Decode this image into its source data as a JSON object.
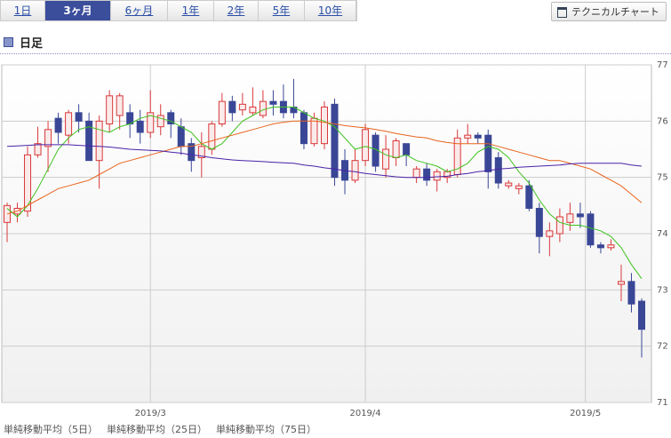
{
  "tabs": [
    "1日",
    "3ヶ月",
    "6ヶ月",
    "1年",
    "2年",
    "5年",
    "10年"
  ],
  "selected_tab": 1,
  "button": "テクニカルチャート",
  "section": "日足",
  "chart_data": {
    "type": "candlestick",
    "categories": [
      null,
      null,
      null,
      null,
      null,
      null,
      null,
      null,
      null,
      null,
      null,
      null,
      null,
      null,
      null,
      null,
      null,
      null,
      null,
      null,
      null,
      null,
      null,
      null,
      null,
      null,
      null,
      null,
      null,
      null,
      null,
      null,
      null,
      null,
      null,
      null,
      null,
      null,
      null,
      null,
      null,
      null,
      null,
      null,
      null,
      null,
      null,
      null,
      null,
      null,
      null,
      null,
      null,
      null,
      null,
      null,
      null,
      null,
      null,
      null,
      null,
      null,
      null
    ],
    "open": [
      74.2,
      74.35,
      74.4,
      75.4,
      75.55,
      76.05,
      75.75,
      76.15,
      76.0,
      75.3,
      75.95,
      76.1,
      76.15,
      76.0,
      75.8,
      75.9,
      76.15,
      75.9,
      75.6,
      75.35,
      75.5,
      75.95,
      76.35,
      76.2,
      76.15,
      76.1,
      76.35,
      76.35,
      76.25,
      76.15,
      75.6,
      75.6,
      76.3,
      75.3,
      74.95,
      75.3,
      75.75,
      75.15,
      75.35,
      75.6,
      75.0,
      75.15,
      74.95,
      75.0,
      75.05,
      75.7,
      75.75,
      75.75,
      75.35,
      74.85,
      74.8,
      74.85,
      74.45,
      73.95,
      74.0,
      74.2,
      74.35,
      74.35,
      73.8,
      73.75,
      73.1,
      73.15,
      72.8
    ],
    "high": [
      74.55,
      74.55,
      75.55,
      75.9,
      76.0,
      76.15,
      76.2,
      76.3,
      76.15,
      76.1,
      76.55,
      76.5,
      76.3,
      76.2,
      76.55,
      76.3,
      76.2,
      76.05,
      75.7,
      75.8,
      76.0,
      76.5,
      76.45,
      76.5,
      76.6,
      76.55,
      76.55,
      76.65,
      76.75,
      76.2,
      76.15,
      76.35,
      76.4,
      75.5,
      75.5,
      75.95,
      75.8,
      75.75,
      75.7,
      75.6,
      75.2,
      75.25,
      75.15,
      75.15,
      75.85,
      75.95,
      75.8,
      75.85,
      75.45,
      74.95,
      74.9,
      74.95,
      74.55,
      74.2,
      74.45,
      74.55,
      74.55,
      74.4,
      73.85,
      73.9,
      73.45,
      73.3,
      72.85
    ],
    "low": [
      73.85,
      74.2,
      74.3,
      75.35,
      75.1,
      75.6,
      75.6,
      75.8,
      75.3,
      74.8,
      75.8,
      75.85,
      75.7,
      75.6,
      75.7,
      75.75,
      75.7,
      75.4,
      75.1,
      75.0,
      75.4,
      75.9,
      76.0,
      76.1,
      76.1,
      76.05,
      76.1,
      76.05,
      76.05,
      75.5,
      75.55,
      75.5,
      74.85,
      74.7,
      74.9,
      75.2,
      75.1,
      75.0,
      75.2,
      75.2,
      74.9,
      74.85,
      74.75,
      74.9,
      75.0,
      75.6,
      75.6,
      74.8,
      74.8,
      74.8,
      74.7,
      74.4,
      73.65,
      73.6,
      73.85,
      74.05,
      74.1,
      73.75,
      73.65,
      73.7,
      72.8,
      72.6,
      71.8
    ],
    "close": [
      74.5,
      74.45,
      75.4,
      75.6,
      75.85,
      75.8,
      76.15,
      76.0,
      75.3,
      76.0,
      76.45,
      76.45,
      75.95,
      75.8,
      76.15,
      76.1,
      75.95,
      75.55,
      75.3,
      75.55,
      75.95,
      76.35,
      76.15,
      76.3,
      76.25,
      76.35,
      76.3,
      76.15,
      76.15,
      75.6,
      76.05,
      76.25,
      75.0,
      74.95,
      75.3,
      75.85,
      75.2,
      75.5,
      75.65,
      75.4,
      75.15,
      74.95,
      75.1,
      75.1,
      75.7,
      75.75,
      75.7,
      75.1,
      74.9,
      74.9,
      74.85,
      74.45,
      73.95,
      74.05,
      74.3,
      74.35,
      74.3,
      73.8,
      73.75,
      73.8,
      73.15,
      72.75,
      72.3
    ],
    "up_color": "#d9383a",
    "down_color": "#3a4796",
    "series": [
      {
        "name": "単純移動平均（5日）",
        "color": "#3ec21e",
        "values": [
          74.45,
          74.3,
          74.5,
          74.8,
          75.15,
          75.5,
          75.7,
          75.85,
          75.9,
          75.85,
          75.8,
          75.9,
          75.95,
          76.05,
          76.1,
          76.05,
          76.0,
          75.9,
          75.8,
          75.6,
          75.5,
          75.6,
          75.8,
          76.0,
          76.1,
          76.2,
          76.25,
          76.25,
          76.25,
          76.15,
          76.05,
          76.0,
          75.9,
          75.7,
          75.5,
          75.55,
          75.5,
          75.4,
          75.35,
          75.4,
          75.3,
          75.25,
          75.2,
          75.1,
          75.15,
          75.25,
          75.45,
          75.55,
          75.5,
          75.35,
          75.1,
          74.9,
          74.6,
          74.35,
          74.2,
          74.15,
          74.15,
          74.1,
          74.05,
          73.95,
          73.75,
          73.45,
          73.2
        ]
      },
      {
        "name": "単純移動平均（25日）",
        "color": "#e8641e",
        "values": [
          74.35,
          74.4,
          74.5,
          74.6,
          74.7,
          74.8,
          74.85,
          74.9,
          74.95,
          75.05,
          75.15,
          75.25,
          75.3,
          75.35,
          75.4,
          75.45,
          75.5,
          75.55,
          75.55,
          75.6,
          75.65,
          75.7,
          75.75,
          75.8,
          75.85,
          75.9,
          75.95,
          75.98,
          76.0,
          76.0,
          76.0,
          75.98,
          75.95,
          75.92,
          75.9,
          75.88,
          75.85,
          75.82,
          75.78,
          75.75,
          75.72,
          75.7,
          75.65,
          75.62,
          75.6,
          75.6,
          75.6,
          75.6,
          75.55,
          75.5,
          75.45,
          75.4,
          75.35,
          75.3,
          75.3,
          75.25,
          75.2,
          75.15,
          75.05,
          74.95,
          74.85,
          74.7,
          74.55
        ]
      },
      {
        "name": "単純移動平均（75日）",
        "color": "#4a22a8",
        "values": [
          75.55,
          75.56,
          75.57,
          75.58,
          75.58,
          75.58,
          75.58,
          75.57,
          75.56,
          75.55,
          75.54,
          75.52,
          75.5,
          75.49,
          75.48,
          75.47,
          75.45,
          75.43,
          75.4,
          75.38,
          75.35,
          75.33,
          75.31,
          75.3,
          75.29,
          75.28,
          75.27,
          75.26,
          75.25,
          75.22,
          75.2,
          75.17,
          75.15,
          75.12,
          75.1,
          75.07,
          75.05,
          75.03,
          75.01,
          75.0,
          75.0,
          75.0,
          75.01,
          75.02,
          75.05,
          75.07,
          75.1,
          75.12,
          75.15,
          75.16,
          75.18,
          75.19,
          75.2,
          75.21,
          75.22,
          75.24,
          75.25,
          75.25,
          75.25,
          75.25,
          75.25,
          75.22,
          75.2
        ]
      }
    ],
    "ylim": [
      71,
      77
    ],
    "yticks": [
      71,
      72,
      73,
      74,
      75,
      76,
      77
    ],
    "xticks": [
      {
        "value": 14,
        "label": "2019/3"
      },
      {
        "value": 35,
        "label": "2019/4"
      },
      {
        "value": 56.5,
        "label": "2019/5"
      }
    ],
    "grid": true
  }
}
